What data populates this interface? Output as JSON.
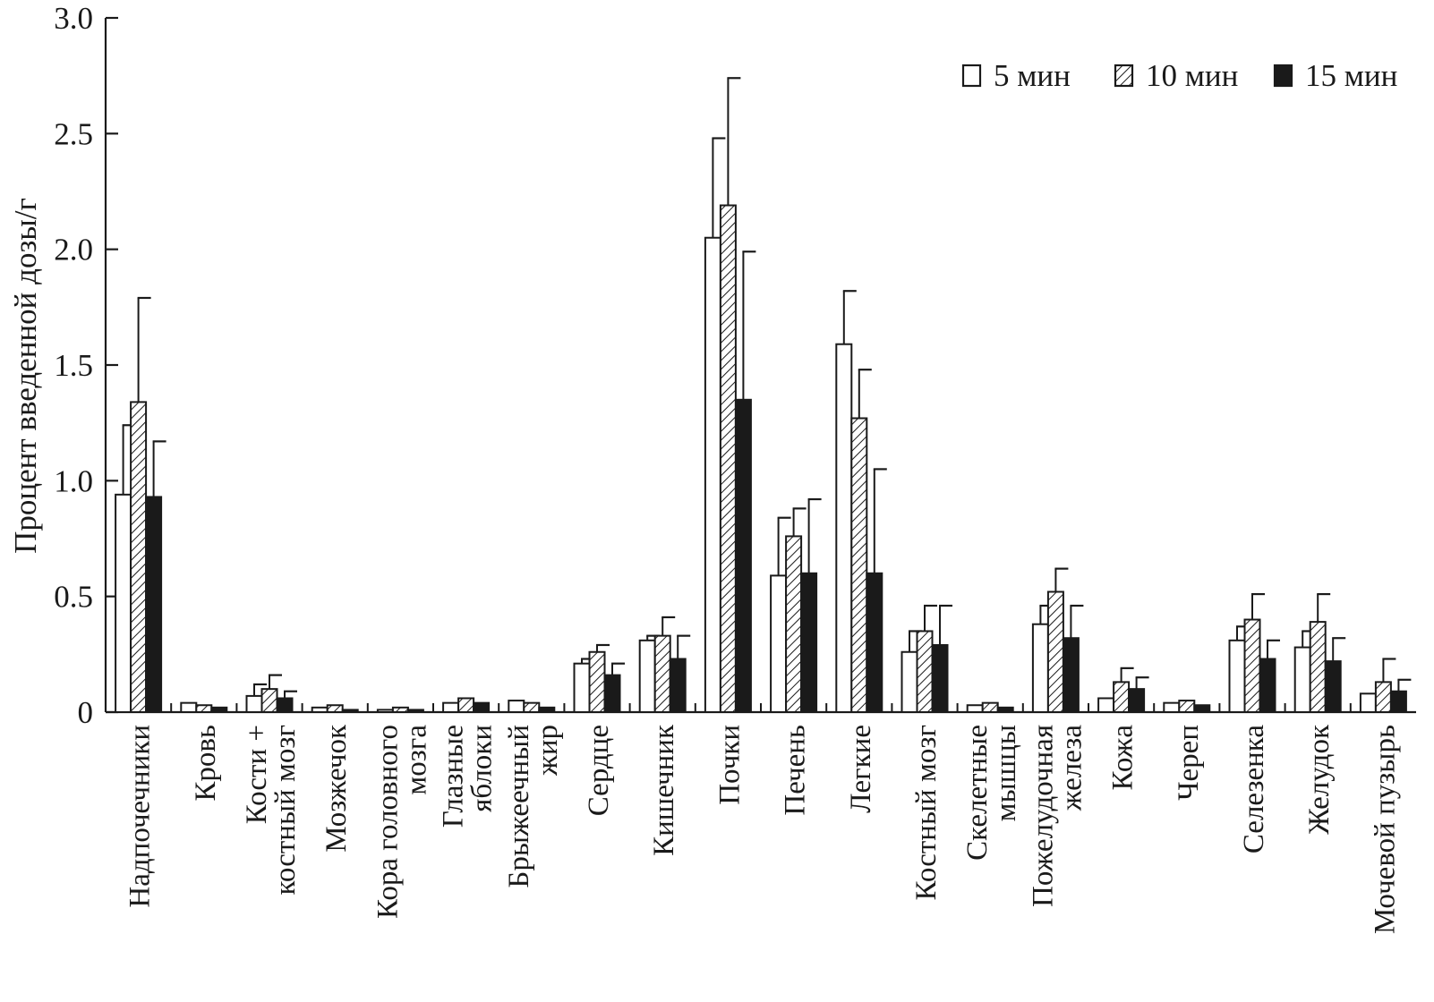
{
  "chart_data": {
    "type": "bar",
    "title": "",
    "xlabel": "",
    "ylabel": "Процент введенной дозы/г",
    "ylim": [
      0,
      3.0
    ],
    "yticks": [
      "0",
      "0.5",
      "1.0",
      "1.5",
      "2.0",
      "2.5",
      "3.0"
    ],
    "legend_position": "top-right",
    "categories": [
      [
        "Надпочечники"
      ],
      [
        "Кровь"
      ],
      [
        "Кости +",
        "костный мозг"
      ],
      [
        "Мозжечок"
      ],
      [
        "Кора головного",
        "мозга"
      ],
      [
        "Глазные",
        "яблоки"
      ],
      [
        "Брыжеечный",
        "жир"
      ],
      [
        "Сердце"
      ],
      [
        "Кишечник"
      ],
      [
        "Почки"
      ],
      [
        "Печень"
      ],
      [
        "Легкие"
      ],
      [
        "Костный мозг"
      ],
      [
        "Скелетные",
        "мышцы"
      ],
      [
        "Пожелудочная",
        "железа"
      ],
      [
        "Кожа"
      ],
      [
        "Череп"
      ],
      [
        "Селезенка"
      ],
      [
        "Желудок"
      ],
      [
        "Мочевой пузырь"
      ]
    ],
    "series": [
      {
        "name": "5 мин",
        "pattern": "open",
        "values": [
          0.94,
          0.04,
          0.07,
          0.02,
          0.01,
          0.04,
          0.05,
          0.21,
          0.31,
          2.05,
          0.59,
          1.59,
          0.26,
          0.03,
          0.38,
          0.06,
          0.04,
          0.31,
          0.28,
          0.08
        ],
        "errors": [
          0.3,
          0.0,
          0.05,
          0.0,
          0.0,
          0.0,
          0.0,
          0.02,
          0.02,
          0.43,
          0.25,
          0.23,
          0.09,
          0.0,
          0.08,
          0.0,
          0.0,
          0.06,
          0.07,
          0.0
        ]
      },
      {
        "name": "10 мин",
        "pattern": "hatched",
        "values": [
          1.34,
          0.03,
          0.1,
          0.03,
          0.02,
          0.06,
          0.04,
          0.26,
          0.33,
          2.19,
          0.76,
          1.27,
          0.35,
          0.04,
          0.52,
          0.13,
          0.05,
          0.4,
          0.39,
          0.13
        ],
        "errors": [
          0.45,
          0.0,
          0.06,
          0.0,
          0.0,
          0.0,
          0.0,
          0.03,
          0.08,
          0.55,
          0.12,
          0.21,
          0.11,
          0.0,
          0.1,
          0.06,
          0.0,
          0.11,
          0.12,
          0.1
        ]
      },
      {
        "name": "15 мин",
        "pattern": "solid",
        "values": [
          0.93,
          0.02,
          0.06,
          0.01,
          0.01,
          0.04,
          0.02,
          0.16,
          0.23,
          1.35,
          0.6,
          0.6,
          0.29,
          0.02,
          0.32,
          0.1,
          0.03,
          0.23,
          0.22,
          0.09
        ],
        "errors": [
          0.24,
          0.0,
          0.03,
          0.0,
          0.0,
          0.0,
          0.0,
          0.05,
          0.1,
          0.64,
          0.32,
          0.45,
          0.17,
          0.0,
          0.14,
          0.05,
          0.0,
          0.08,
          0.1,
          0.05
        ]
      }
    ]
  }
}
